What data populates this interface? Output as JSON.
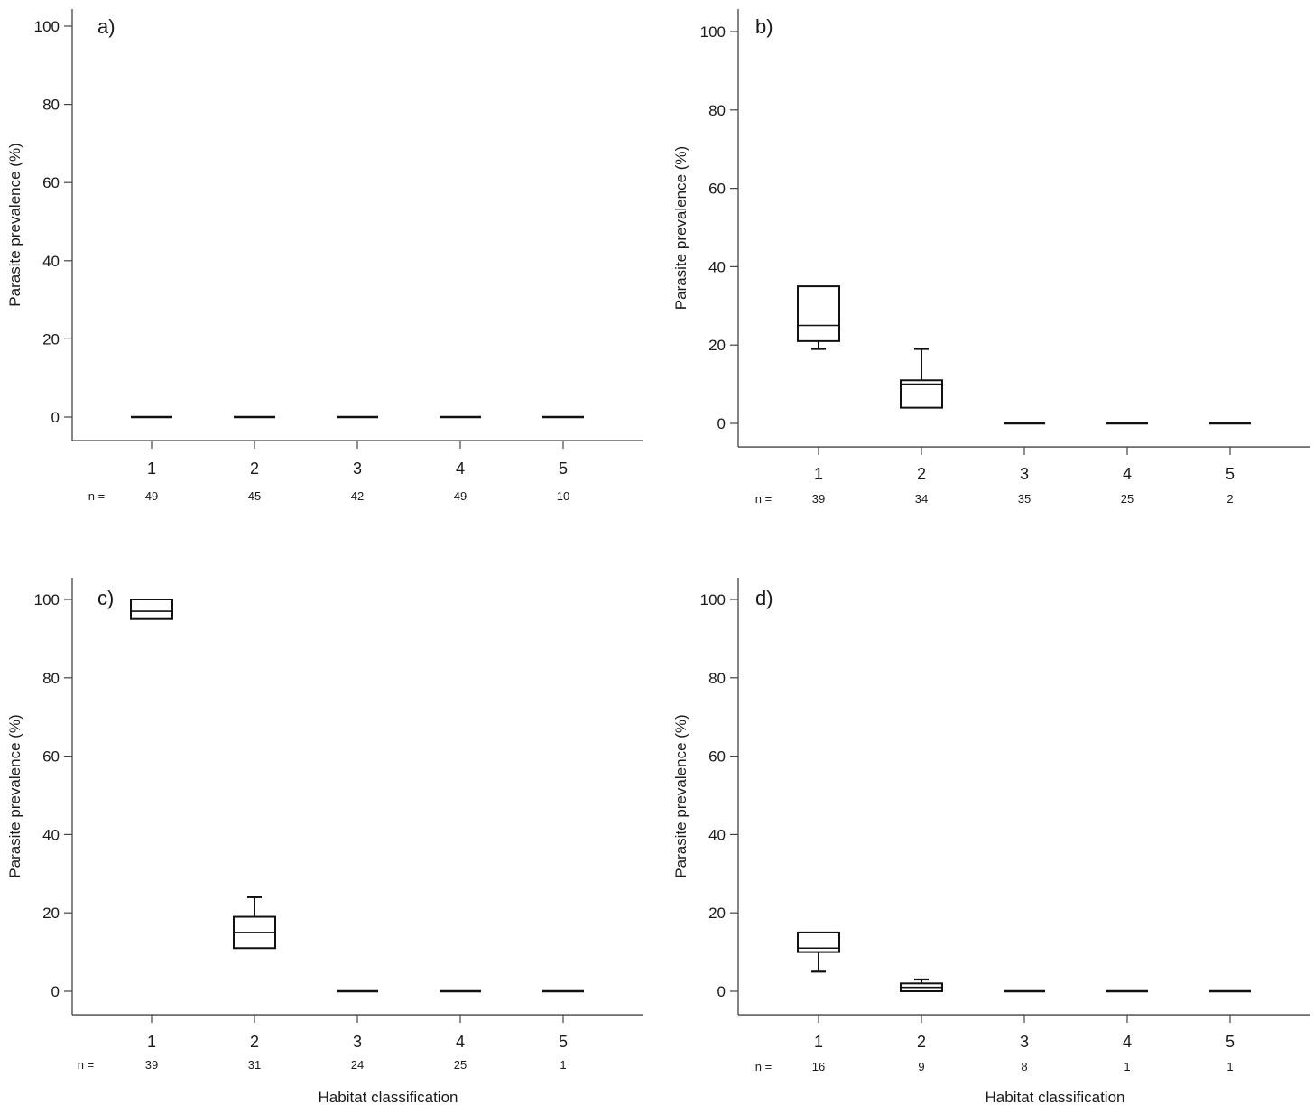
{
  "figure": {
    "x_axis_label": "Habitat classification",
    "y_axis_label": "Parasite prevalence (%)",
    "n_prefix": "n ="
  },
  "colors": {
    "axis": "#444444",
    "box": "#111111",
    "background": "#ffffff"
  },
  "chart_data": [
    {
      "type": "box",
      "panel": "a)",
      "categories": [
        "1",
        "2",
        "3",
        "4",
        "5"
      ],
      "n": [
        "49",
        "45",
        "42",
        "49",
        "10"
      ],
      "ylabel": "Parasite prevalence (%)",
      "xlabel": "",
      "ylim": [
        -6,
        105
      ],
      "yticks": [
        0,
        20,
        40,
        60,
        80,
        100
      ],
      "boxes": [
        {
          "min": 0,
          "q1": 0,
          "median": 0,
          "q3": 0,
          "max": 0
        },
        {
          "min": 0,
          "q1": 0,
          "median": 0,
          "q3": 0,
          "max": 0
        },
        {
          "min": 0,
          "q1": 0,
          "median": 0,
          "q3": 0,
          "max": 0
        },
        {
          "min": 0,
          "q1": 0,
          "median": 0,
          "q3": 0,
          "max": 0
        },
        {
          "min": 0,
          "q1": 0,
          "median": 0,
          "q3": 0,
          "max": 0
        }
      ]
    },
    {
      "type": "box",
      "panel": "b)",
      "categories": [
        "1",
        "2",
        "3",
        "4",
        "5"
      ],
      "n": [
        "39",
        "34",
        "35",
        "25",
        "2"
      ],
      "ylabel": "Parasite prevalence (%)",
      "xlabel": "",
      "ylim": [
        -6,
        105
      ],
      "yticks": [
        0,
        20,
        40,
        60,
        80,
        100
      ],
      "boxes": [
        {
          "min": 19,
          "q1": 21,
          "median": 25,
          "q3": 35,
          "max": 35
        },
        {
          "min": 4,
          "q1": 4,
          "median": 10,
          "q3": 11,
          "max": 19
        },
        {
          "min": 0,
          "q1": 0,
          "median": 0,
          "q3": 0,
          "max": 0
        },
        {
          "min": 0,
          "q1": 0,
          "median": 0,
          "q3": 0,
          "max": 0
        },
        {
          "min": 0,
          "q1": 0,
          "median": 0,
          "q3": 0,
          "max": 0
        }
      ]
    },
    {
      "type": "box",
      "panel": "c)",
      "categories": [
        "1",
        "2",
        "3",
        "4",
        "5"
      ],
      "n": [
        "39",
        "31",
        "24",
        "25",
        "1"
      ],
      "ylabel": "Parasite prevalence (%)",
      "xlabel": "Habitat classification",
      "ylim": [
        -6,
        105
      ],
      "yticks": [
        0,
        20,
        40,
        60,
        80,
        100
      ],
      "boxes": [
        {
          "min": 95,
          "q1": 95,
          "median": 97,
          "q3": 100,
          "max": 100
        },
        {
          "min": 11,
          "q1": 11,
          "median": 15,
          "q3": 19,
          "max": 24
        },
        {
          "min": 0,
          "q1": 0,
          "median": 0,
          "q3": 0,
          "max": 0
        },
        {
          "min": 0,
          "q1": 0,
          "median": 0,
          "q3": 0,
          "max": 0
        },
        {
          "min": 0,
          "q1": 0,
          "median": 0,
          "q3": 0,
          "max": 0
        }
      ]
    },
    {
      "type": "box",
      "panel": "d)",
      "categories": [
        "1",
        "2",
        "3",
        "4",
        "5"
      ],
      "n": [
        "16",
        "9",
        "8",
        "1",
        "1"
      ],
      "ylabel": "Parasite prevalence (%)",
      "xlabel": "Habitat classification",
      "ylim": [
        -6,
        105
      ],
      "yticks": [
        0,
        20,
        40,
        60,
        80,
        100
      ],
      "boxes": [
        {
          "min": 5,
          "q1": 10,
          "median": 11,
          "q3": 15,
          "max": 15
        },
        {
          "min": 0,
          "q1": 0,
          "median": 1,
          "q3": 2,
          "max": 3
        },
        {
          "min": 0,
          "q1": 0,
          "median": 0,
          "q3": 0,
          "max": 0
        },
        {
          "min": 0,
          "q1": 0,
          "median": 0,
          "q3": 0,
          "max": 0
        },
        {
          "min": 0,
          "q1": 0,
          "median": 0,
          "q3": 0,
          "max": 0
        }
      ]
    }
  ]
}
